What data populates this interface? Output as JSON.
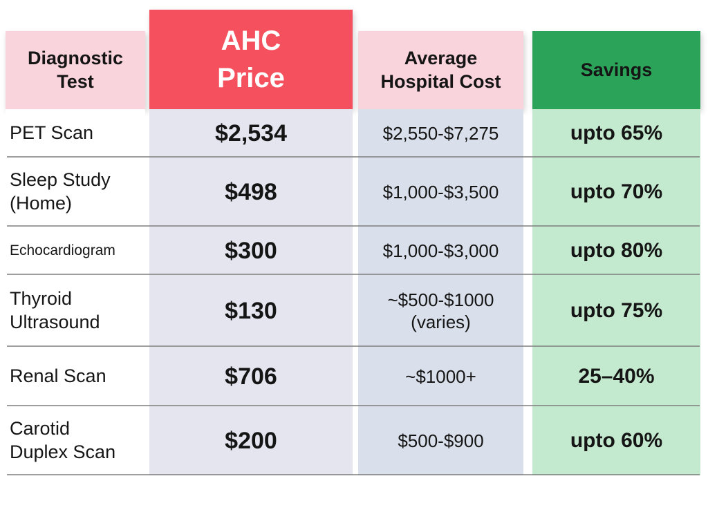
{
  "colors": {
    "header_pink": "#fad4dc",
    "header_red": "#f5505e",
    "header_green": "#2ba45a",
    "ahc_column_bg": "#e5e5f0",
    "hospital_column_bg": "#d9e0eb",
    "savings_column_bg": "#c3e9ce",
    "text": "#151515",
    "row_divider": "#7d7d7d"
  },
  "table": {
    "headers": {
      "test": "Diagnostic\nTest",
      "ahc": "AHC\nPrice",
      "hospital": "Average\nHospital Cost",
      "savings": "Savings"
    },
    "rows": [
      {
        "test": "PET Scan",
        "ahc": "$2,534",
        "hospital": "$2,550-$7,275",
        "savings": "upto 65%"
      },
      {
        "test": "Sleep Study\n(Home)",
        "ahc": "$498",
        "hospital": "$1,000-$3,500",
        "savings": "upto 70%"
      },
      {
        "test": "Echocardiogram",
        "ahc": "$300",
        "hospital": "$1,000-$3,000",
        "savings": "upto 80%"
      },
      {
        "test": "Thyroid\nUltrasound",
        "ahc": "$130",
        "hospital": "~$500-$1000\n(varies)",
        "savings": "upto 75%"
      },
      {
        "test": "Renal Scan",
        "ahc": "$706",
        "hospital": "~$1000+",
        "savings": "25–40%"
      },
      {
        "test": "Carotid\nDuplex Scan",
        "ahc": "$200",
        "hospital": "$500-$900",
        "savings": "upto 60%"
      }
    ]
  },
  "chart_data": {
    "type": "table",
    "columns": [
      "Diagnostic Test",
      "AHC Price",
      "Average Hospital Cost",
      "Savings"
    ],
    "rows": [
      [
        "PET Scan",
        "$2,534",
        "$2,550-$7,275",
        "upto 65%"
      ],
      [
        "Sleep Study (Home)",
        "$498",
        "$1,000-$3,500",
        "upto 70%"
      ],
      [
        "Echocardiogram",
        "$300",
        "$1,000-$3,000",
        "upto 80%"
      ],
      [
        "Thyroid Ultrasound",
        "$130",
        "~$500-$1000 (varies)",
        "upto 75%"
      ],
      [
        "Renal Scan",
        "$706",
        "~$1000+",
        "25–40%"
      ],
      [
        "Carotid Duplex Scan",
        "$200",
        "$500-$900",
        "upto 60%"
      ]
    ]
  }
}
